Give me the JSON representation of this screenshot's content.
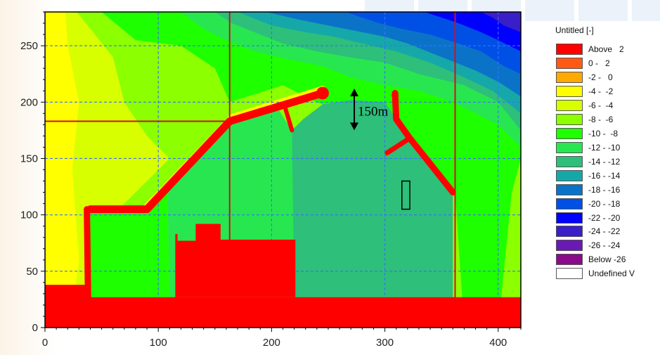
{
  "chart_data": {
    "type": "heatmap",
    "title": "",
    "xlabel": "",
    "ylabel": "",
    "xlim": [
      0,
      420
    ],
    "ylim": [
      0,
      280
    ],
    "x_ticks": [
      0,
      100,
      200,
      300,
      400
    ],
    "y_ticks": [
      0,
      50,
      100,
      150,
      200,
      250
    ],
    "grid": true,
    "legend_placement": "right",
    "legend": {
      "title": "Untitled [-]",
      "entries": [
        {
          "label": "Above   2",
          "color": "#ff0000"
        },
        {
          "label": "0 -   2",
          "color": "#ff5a14"
        },
        {
          "label": "-2 -   0",
          "color": "#ffaa00"
        },
        {
          "label": "-4 -  -2",
          "color": "#ffff00"
        },
        {
          "label": "-6 -  -4",
          "color": "#d8ff00"
        },
        {
          "label": "-8 -  -6",
          "color": "#8cff00"
        },
        {
          "label": "-10 -  -8",
          "color": "#1eff00"
        },
        {
          "label": "-12 - -10",
          "color": "#28e650"
        },
        {
          "label": "-14 - -12",
          "color": "#2ebf7a"
        },
        {
          "label": "-16 - -14",
          "color": "#16a8a8"
        },
        {
          "label": "-18 - -16",
          "color": "#0a73c8"
        },
        {
          "label": "-20 - -18",
          "color": "#0050e6"
        },
        {
          "label": "-22 - -20",
          "color": "#0000ff"
        },
        {
          "label": "-24 - -22",
          "color": "#3a1ec8"
        },
        {
          "label": "-26 - -24",
          "color": "#6a1ab4"
        },
        {
          "label": "Below -26",
          "color": "#8a0a8a"
        },
        {
          "label": "Undefined V",
          "color": "#ffffff"
        }
      ]
    },
    "annotations": [
      {
        "text": "150m",
        "x": 280,
        "y": 190
      }
    ],
    "red_grid_lines": {
      "x": [
        163,
        362
      ],
      "y": [
        183
      ]
    },
    "breakwater_north": [
      [
        40,
        105
      ],
      [
        90,
        105
      ],
      [
        163,
        183
      ],
      [
        245,
        208
      ]
    ],
    "breakwater_north_spur": [
      [
        212,
        195
      ],
      [
        218,
        175
      ]
    ],
    "breakwater_south": [
      [
        360,
        120
      ],
      [
        322,
        168
      ],
      [
        310,
        185
      ],
      [
        309,
        208
      ]
    ],
    "breakwater_south_spur": [
      [
        322,
        168
      ],
      [
        302,
        155
      ]
    ],
    "land_regions": [
      {
        "name": "land-bottom",
        "polygon": [
          [
            0,
            0
          ],
          [
            420,
            0
          ],
          [
            420,
            27
          ],
          [
            0,
            27
          ]
        ]
      },
      {
        "name": "land-left",
        "polygon": [
          [
            0,
            0
          ],
          [
            38,
            0
          ],
          [
            38,
            38
          ],
          [
            0,
            38
          ]
        ]
      },
      {
        "name": "land-center",
        "polygon": [
          [
            115,
            27
          ],
          [
            221,
            27
          ],
          [
            221,
            78
          ],
          [
            155,
            78
          ],
          [
            155,
            92
          ],
          [
            133,
            92
          ],
          [
            133,
            77
          ],
          [
            117,
            77
          ],
          [
            117,
            83
          ],
          [
            115,
            83
          ]
        ]
      }
    ],
    "marker_rectangle": {
      "x": [
        315,
        322
      ],
      "y": [
        105,
        130
      ]
    }
  }
}
